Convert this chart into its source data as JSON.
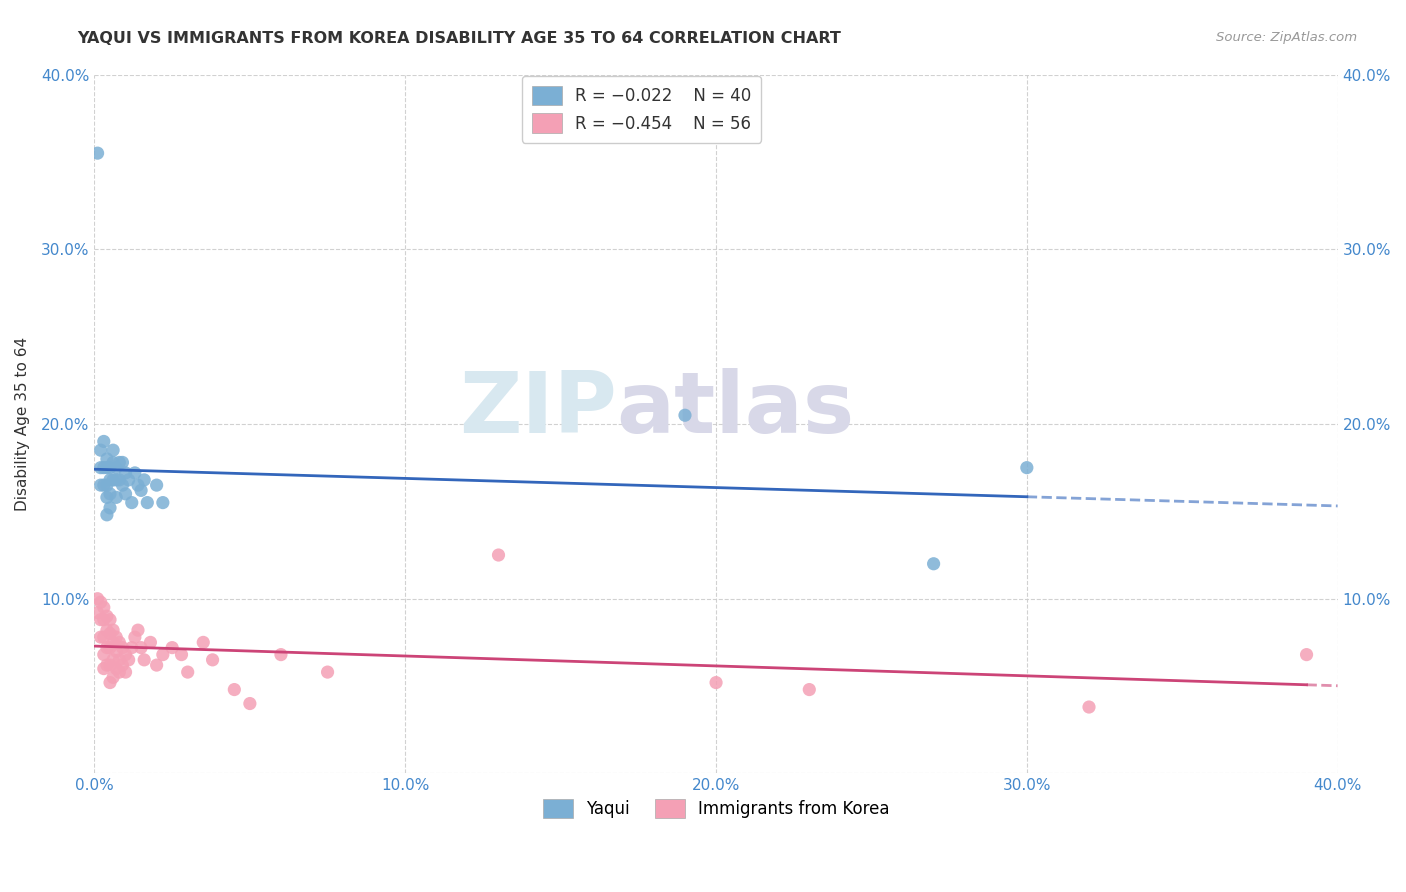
{
  "title": "YAQUI VS IMMIGRANTS FROM KOREA DISABILITY AGE 35 TO 64 CORRELATION CHART",
  "source": "Source: ZipAtlas.com",
  "ylabel": "Disability Age 35 to 64",
  "xlim": [
    0.0,
    0.4
  ],
  "ylim": [
    0.0,
    0.4
  ],
  "xticks": [
    0.0,
    0.1,
    0.2,
    0.3,
    0.4
  ],
  "yticks": [
    0.0,
    0.1,
    0.2,
    0.3,
    0.4
  ],
  "xticklabels": [
    "0.0%",
    "10.0%",
    "20.0%",
    "30.0%",
    "40.0%"
  ],
  "yticklabels_left": [
    "",
    "10.0%",
    "20.0%",
    "30.0%",
    "40.0%"
  ],
  "yticklabels_right": [
    "",
    "10.0%",
    "20.0%",
    "30.0%",
    "40.0%"
  ],
  "yaqui_color": "#7bafd4",
  "korea_color": "#f4a0b5",
  "yaqui_line_color": "#3366bb",
  "korea_line_color": "#cc4477",
  "yaqui_label": "Yaqui",
  "korea_label": "Immigrants from Korea",
  "legend_r1": "R = -0.022",
  "legend_n1": "N = 40",
  "legend_r2": "R = -0.454",
  "legend_n2": "N = 56",
  "yaqui_x": [
    0.001,
    0.002,
    0.002,
    0.002,
    0.003,
    0.003,
    0.003,
    0.004,
    0.004,
    0.004,
    0.004,
    0.004,
    0.005,
    0.005,
    0.005,
    0.005,
    0.006,
    0.006,
    0.006,
    0.007,
    0.007,
    0.007,
    0.008,
    0.008,
    0.009,
    0.009,
    0.01,
    0.01,
    0.011,
    0.012,
    0.013,
    0.014,
    0.015,
    0.016,
    0.017,
    0.02,
    0.022,
    0.19,
    0.27,
    0.3
  ],
  "yaqui_y": [
    0.355,
    0.185,
    0.175,
    0.165,
    0.19,
    0.175,
    0.165,
    0.18,
    0.175,
    0.165,
    0.158,
    0.148,
    0.175,
    0.168,
    0.16,
    0.152,
    0.185,
    0.178,
    0.168,
    0.175,
    0.168,
    0.158,
    0.178,
    0.168,
    0.178,
    0.165,
    0.172,
    0.16,
    0.168,
    0.155,
    0.172,
    0.165,
    0.162,
    0.168,
    0.155,
    0.165,
    0.155,
    0.205,
    0.12,
    0.175
  ],
  "korea_x": [
    0.001,
    0.001,
    0.002,
    0.002,
    0.002,
    0.003,
    0.003,
    0.003,
    0.003,
    0.003,
    0.004,
    0.004,
    0.004,
    0.004,
    0.005,
    0.005,
    0.005,
    0.005,
    0.005,
    0.006,
    0.006,
    0.006,
    0.006,
    0.007,
    0.007,
    0.007,
    0.008,
    0.008,
    0.008,
    0.009,
    0.009,
    0.01,
    0.01,
    0.011,
    0.012,
    0.013,
    0.014,
    0.015,
    0.016,
    0.018,
    0.02,
    0.022,
    0.025,
    0.028,
    0.03,
    0.035,
    0.038,
    0.045,
    0.05,
    0.06,
    0.075,
    0.13,
    0.2,
    0.23,
    0.32,
    0.39
  ],
  "korea_y": [
    0.1,
    0.092,
    0.098,
    0.088,
    0.078,
    0.095,
    0.088,
    0.078,
    0.068,
    0.06,
    0.09,
    0.082,
    0.072,
    0.062,
    0.088,
    0.08,
    0.072,
    0.062,
    0.052,
    0.082,
    0.075,
    0.065,
    0.055,
    0.078,
    0.07,
    0.06,
    0.075,
    0.065,
    0.058,
    0.072,
    0.062,
    0.068,
    0.058,
    0.065,
    0.072,
    0.078,
    0.082,
    0.072,
    0.065,
    0.075,
    0.062,
    0.068,
    0.072,
    0.068,
    0.058,
    0.075,
    0.065,
    0.048,
    0.04,
    0.068,
    0.058,
    0.125,
    0.052,
    0.048,
    0.038,
    0.068
  ],
  "background_color": "#ffffff",
  "grid_color": "#cccccc",
  "watermark_text_zip": "ZIP",
  "watermark_text_atlas": "atlas",
  "watermark_color_zip": "#d8e8f0",
  "watermark_color_atlas": "#d8d8e8"
}
